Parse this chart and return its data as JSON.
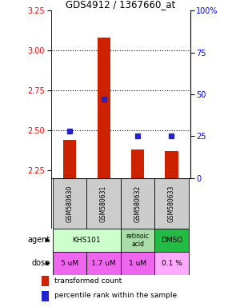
{
  "title": "GDS4912 / 1367660_at",
  "samples": [
    "GSM580630",
    "GSM580631",
    "GSM580632",
    "GSM580633"
  ],
  "bar_values": [
    2.44,
    3.08,
    2.38,
    2.37
  ],
  "dot_values": [
    28,
    47,
    25,
    25
  ],
  "bar_color": "#cc2200",
  "dot_color": "#2222cc",
  "ylim_left": [
    2.2,
    3.25
  ],
  "ylim_right": [
    0,
    100
  ],
  "yticks_left": [
    2.25,
    2.5,
    2.75,
    3.0,
    3.25
  ],
  "yticks_right": [
    0,
    25,
    50,
    75,
    100
  ],
  "ytick_labels_right": [
    "0",
    "25",
    "50",
    "75",
    "100%"
  ],
  "hlines": [
    2.5,
    2.75,
    3.0
  ],
  "agents": [
    {
      "label": "KHS101",
      "start": 0,
      "end": 1,
      "color": "#ccffcc"
    },
    {
      "label": "retinoic\nacid",
      "start": 2,
      "end": 2,
      "color": "#aaddaa"
    },
    {
      "label": "DMSO",
      "start": 3,
      "end": 3,
      "color": "#22bb44"
    }
  ],
  "doses": [
    "5 uM",
    "1.7 uM",
    "1 uM",
    "0.1 %"
  ],
  "dose_colors": [
    "#ee66ee",
    "#ee66ee",
    "#ee66ee",
    "#ffaaff"
  ],
  "sample_bg": "#cccccc",
  "legend_bar_label": "transformed count",
  "legend_dot_label": "percentile rank within the sample"
}
